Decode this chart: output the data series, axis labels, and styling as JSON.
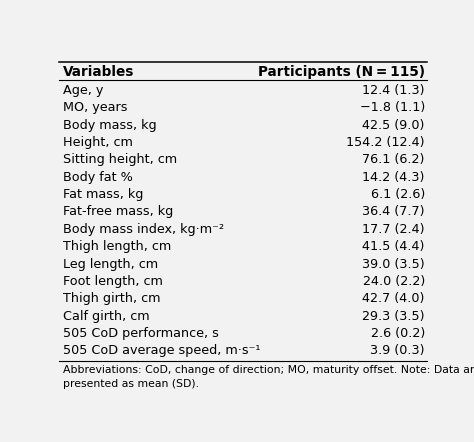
{
  "title_left": "Variables",
  "title_right": "Participants (N = 115)",
  "rows": [
    [
      "Age, y",
      "12.4 (1.3)"
    ],
    [
      "MO, years",
      "−1.8 (1.1)"
    ],
    [
      "Body mass, kg",
      "42.5 (9.0)"
    ],
    [
      "Height, cm",
      "154.2 (12.4)"
    ],
    [
      "Sitting height, cm",
      "76.1 (6.2)"
    ],
    [
      "Body fat %",
      "14.2 (4.3)"
    ],
    [
      "Fat mass, kg",
      "6.1 (2.6)"
    ],
    [
      "Fat-free mass, kg",
      "36.4 (7.7)"
    ],
    [
      "Body mass index, kg·m⁻²",
      "17.7 (2.4)"
    ],
    [
      "Thigh length, cm",
      "41.5 (4.4)"
    ],
    [
      "Leg length, cm",
      "39.0 (3.5)"
    ],
    [
      "Foot length, cm",
      "24.0 (2.2)"
    ],
    [
      "Thigh girth, cm",
      "42.7 (4.0)"
    ],
    [
      "Calf girth, cm",
      "29.3 (3.5)"
    ],
    [
      "505 CoD performance, s",
      "2.6 (0.2)"
    ],
    [
      "505 CoD average speed, m·s⁻¹",
      "3.9 (0.3)"
    ]
  ],
  "footnote": "Abbreviations: CoD, change of direction; MO, maturity offset. Note: Data are\npresented as mean (SD).",
  "bg_color": "#f2f2f2",
  "header_line_color": "#000000",
  "text_color": "#000000",
  "font_size": 9.2,
  "header_font_size": 9.8
}
